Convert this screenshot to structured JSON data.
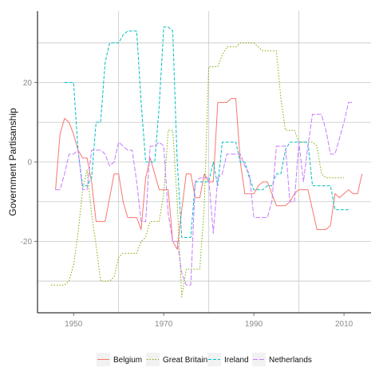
{
  "chart_data": {
    "type": "line",
    "xlabel": "",
    "ylabel": "Government Partisanship",
    "xlim": [
      1942,
      2016
    ],
    "ylim": [
      -38,
      38
    ],
    "x_ticks": [
      1950,
      1970,
      1990,
      2010
    ],
    "x_tick_labels": [
      "1950",
      "1970",
      "1990",
      "2010"
    ],
    "x_minor_grid": [
      1960,
      1980,
      2000
    ],
    "y_ticks": [
      -20,
      0,
      20
    ],
    "y_tick_labels": [
      "-20",
      "0",
      "20"
    ],
    "y_minor_grid": [
      -30,
      -10,
      10,
      30
    ],
    "grid": true,
    "legend_position": "bottom",
    "series": [
      {
        "name": "Belgium",
        "color": "#F8766D",
        "dash": "",
        "points": [
          [
            1946,
            -7
          ],
          [
            1947,
            7
          ],
          [
            1948,
            11
          ],
          [
            1949,
            10
          ],
          [
            1950,
            7
          ],
          [
            1951,
            3
          ],
          [
            1952,
            1
          ],
          [
            1953,
            1
          ],
          [
            1954,
            -5
          ],
          [
            1955,
            -15
          ],
          [
            1956,
            -15
          ],
          [
            1957,
            -15
          ],
          [
            1958,
            -9
          ],
          [
            1959,
            -3
          ],
          [
            1960,
            -3
          ],
          [
            1961,
            -10
          ],
          [
            1962,
            -14
          ],
          [
            1963,
            -14
          ],
          [
            1964,
            -14
          ],
          [
            1965,
            -17
          ],
          [
            1966,
            -4
          ],
          [
            1967,
            1
          ],
          [
            1968,
            -3
          ],
          [
            1969,
            -7
          ],
          [
            1970,
            -7
          ],
          [
            1971,
            -7
          ],
          [
            1972,
            -20
          ],
          [
            1973,
            -22
          ],
          [
            1974,
            -12
          ],
          [
            1975,
            -3
          ],
          [
            1976,
            -3
          ],
          [
            1977,
            -9
          ],
          [
            1978,
            -9
          ],
          [
            1979,
            -3
          ],
          [
            1980,
            -5
          ],
          [
            1981,
            -5
          ],
          [
            1982,
            15
          ],
          [
            1983,
            15
          ],
          [
            1984,
            15
          ],
          [
            1985,
            16
          ],
          [
            1986,
            16
          ],
          [
            1987,
            0
          ],
          [
            1988,
            -8
          ],
          [
            1989,
            -8
          ],
          [
            1990,
            -8
          ],
          [
            1991,
            -6
          ],
          [
            1992,
            -5
          ],
          [
            1993,
            -5
          ],
          [
            1994,
            -8
          ],
          [
            1995,
            -11
          ],
          [
            1996,
            -11
          ],
          [
            1997,
            -11
          ],
          [
            1998,
            -10
          ],
          [
            1999,
            -8
          ],
          [
            2000,
            -7
          ],
          [
            2001,
            -7
          ],
          [
            2002,
            -7
          ],
          [
            2003,
            -12
          ],
          [
            2004,
            -17
          ],
          [
            2005,
            -17
          ],
          [
            2006,
            -17
          ],
          [
            2007,
            -16
          ],
          [
            2008,
            -8
          ],
          [
            2009,
            -9
          ],
          [
            2010,
            -8
          ],
          [
            2011,
            -7
          ],
          [
            2012,
            -8
          ],
          [
            2013,
            -8
          ],
          [
            2014,
            -3
          ]
        ]
      },
      {
        "name": "Great Britain",
        "color": "#7CAE00",
        "dash": "1.5,2",
        "points": [
          [
            1945,
            -31
          ],
          [
            1946,
            -31
          ],
          [
            1947,
            -31
          ],
          [
            1948,
            -31
          ],
          [
            1949,
            -30
          ],
          [
            1950,
            -26
          ],
          [
            1951,
            -18
          ],
          [
            1952,
            -7
          ],
          [
            1953,
            -2
          ],
          [
            1954,
            -13
          ],
          [
            1955,
            -21
          ],
          [
            1956,
            -30
          ],
          [
            1957,
            -30
          ],
          [
            1958,
            -30
          ],
          [
            1959,
            -29
          ],
          [
            1960,
            -24
          ],
          [
            1961,
            -23
          ],
          [
            1962,
            -23
          ],
          [
            1963,
            -23
          ],
          [
            1964,
            -23
          ],
          [
            1965,
            -20
          ],
          [
            1966,
            -19
          ],
          [
            1967,
            -15
          ],
          [
            1968,
            -15
          ],
          [
            1969,
            -15
          ],
          [
            1970,
            -8
          ],
          [
            1971,
            8
          ],
          [
            1972,
            8
          ],
          [
            1973,
            -10
          ],
          [
            1974,
            -34
          ],
          [
            1975,
            -27
          ],
          [
            1976,
            -27
          ],
          [
            1977,
            -27
          ],
          [
            1978,
            -27
          ],
          [
            1979,
            -11
          ],
          [
            1980,
            24
          ],
          [
            1981,
            24
          ],
          [
            1982,
            24
          ],
          [
            1983,
            27
          ],
          [
            1984,
            29
          ],
          [
            1985,
            29
          ],
          [
            1986,
            29
          ],
          [
            1987,
            30
          ],
          [
            1988,
            30
          ],
          [
            1989,
            30
          ],
          [
            1990,
            30
          ],
          [
            1991,
            29
          ],
          [
            1992,
            28
          ],
          [
            1993,
            28
          ],
          [
            1994,
            28
          ],
          [
            1995,
            28
          ],
          [
            1996,
            16
          ],
          [
            1997,
            8
          ],
          [
            1998,
            8
          ],
          [
            1999,
            8
          ],
          [
            2000,
            5
          ],
          [
            2001,
            5
          ],
          [
            2002,
            5
          ],
          [
            2003,
            5
          ],
          [
            2004,
            4
          ],
          [
            2005,
            -3
          ],
          [
            2006,
            -4
          ],
          [
            2007,
            -4
          ],
          [
            2008,
            -4
          ],
          [
            2009,
            -4
          ],
          [
            2010,
            -4
          ]
        ]
      },
      {
        "name": "Ireland",
        "color": "#00BFC4",
        "dash": "4,2",
        "points": [
          [
            1948,
            20
          ],
          [
            1949,
            20
          ],
          [
            1950,
            20
          ],
          [
            1951,
            3
          ],
          [
            1952,
            -6
          ],
          [
            1953,
            -6
          ],
          [
            1954,
            -4
          ],
          [
            1955,
            10
          ],
          [
            1956,
            10
          ],
          [
            1957,
            25
          ],
          [
            1958,
            30
          ],
          [
            1959,
            30
          ],
          [
            1960,
            30
          ],
          [
            1961,
            32
          ],
          [
            1962,
            33
          ],
          [
            1963,
            33
          ],
          [
            1964,
            33
          ],
          [
            1965,
            15
          ],
          [
            1966,
            0
          ],
          [
            1967,
            0
          ],
          [
            1968,
            0
          ],
          [
            1969,
            14
          ],
          [
            1970,
            34
          ],
          [
            1971,
            34
          ],
          [
            1972,
            33
          ],
          [
            1973,
            0
          ],
          [
            1974,
            -19
          ],
          [
            1975,
            -19
          ],
          [
            1976,
            -19
          ],
          [
            1977,
            -5
          ],
          [
            1978,
            -5
          ],
          [
            1979,
            -5
          ],
          [
            1980,
            -5
          ],
          [
            1981,
            0
          ],
          [
            1982,
            -6
          ],
          [
            1983,
            5
          ],
          [
            1984,
            5
          ],
          [
            1985,
            5
          ],
          [
            1986,
            5
          ],
          [
            1987,
            0
          ],
          [
            1988,
            0
          ],
          [
            1989,
            -4
          ],
          [
            1990,
            -7
          ],
          [
            1991,
            -7
          ],
          [
            1992,
            -7
          ],
          [
            1993,
            -6
          ],
          [
            1994,
            -6
          ],
          [
            1995,
            -3
          ],
          [
            1996,
            -3
          ],
          [
            1997,
            3
          ],
          [
            1998,
            5
          ],
          [
            1999,
            5
          ],
          [
            2000,
            5
          ],
          [
            2001,
            5
          ],
          [
            2002,
            5
          ],
          [
            2003,
            -6
          ],
          [
            2004,
            -6
          ],
          [
            2005,
            -6
          ],
          [
            2006,
            -6
          ],
          [
            2007,
            -6
          ],
          [
            2008,
            -12
          ],
          [
            2009,
            -12
          ],
          [
            2010,
            -12
          ],
          [
            2011,
            -12
          ]
        ]
      },
      {
        "name": "Netherlands",
        "color": "#C77CFF",
        "dash": "6,2",
        "points": [
          [
            1946,
            -7
          ],
          [
            1947,
            -7
          ],
          [
            1948,
            -3
          ],
          [
            1949,
            2
          ],
          [
            1950,
            2
          ],
          [
            1951,
            3
          ],
          [
            1952,
            -7
          ],
          [
            1953,
            -7
          ],
          [
            1954,
            3
          ],
          [
            1955,
            3
          ],
          [
            1956,
            3
          ],
          [
            1957,
            2
          ],
          [
            1958,
            -1
          ],
          [
            1959,
            0
          ],
          [
            1960,
            5
          ],
          [
            1961,
            4
          ],
          [
            1962,
            3
          ],
          [
            1963,
            3
          ],
          [
            1964,
            -5
          ],
          [
            1965,
            -15
          ],
          [
            1966,
            -15
          ],
          [
            1967,
            4
          ],
          [
            1968,
            4
          ],
          [
            1969,
            5
          ],
          [
            1970,
            4
          ],
          [
            1971,
            -13
          ],
          [
            1972,
            -20
          ],
          [
            1973,
            -20
          ],
          [
            1974,
            -28
          ],
          [
            1975,
            -31
          ],
          [
            1976,
            -31
          ],
          [
            1977,
            -5
          ],
          [
            1978,
            -4
          ],
          [
            1979,
            -4
          ],
          [
            1980,
            -4
          ],
          [
            1981,
            -18
          ],
          [
            1982,
            -4
          ],
          [
            1983,
            -3
          ],
          [
            1984,
            2
          ],
          [
            1985,
            2
          ],
          [
            1986,
            2
          ],
          [
            1987,
            2
          ],
          [
            1988,
            -1
          ],
          [
            1989,
            -3
          ],
          [
            1990,
            -14
          ],
          [
            1991,
            -14
          ],
          [
            1992,
            -14
          ],
          [
            1993,
            -14
          ],
          [
            1994,
            -10
          ],
          [
            1995,
            4
          ],
          [
            1996,
            4
          ],
          [
            1997,
            4
          ],
          [
            1998,
            -10
          ],
          [
            1999,
            -10
          ],
          [
            2000,
            5
          ],
          [
            2001,
            -5
          ],
          [
            2002,
            4
          ],
          [
            2003,
            12
          ],
          [
            2004,
            12
          ],
          [
            2005,
            12
          ],
          [
            2006,
            8
          ],
          [
            2007,
            2
          ],
          [
            2008,
            2
          ],
          [
            2009,
            6
          ],
          [
            2010,
            10
          ],
          [
            2011,
            15
          ],
          [
            2012,
            15
          ]
        ]
      }
    ]
  }
}
